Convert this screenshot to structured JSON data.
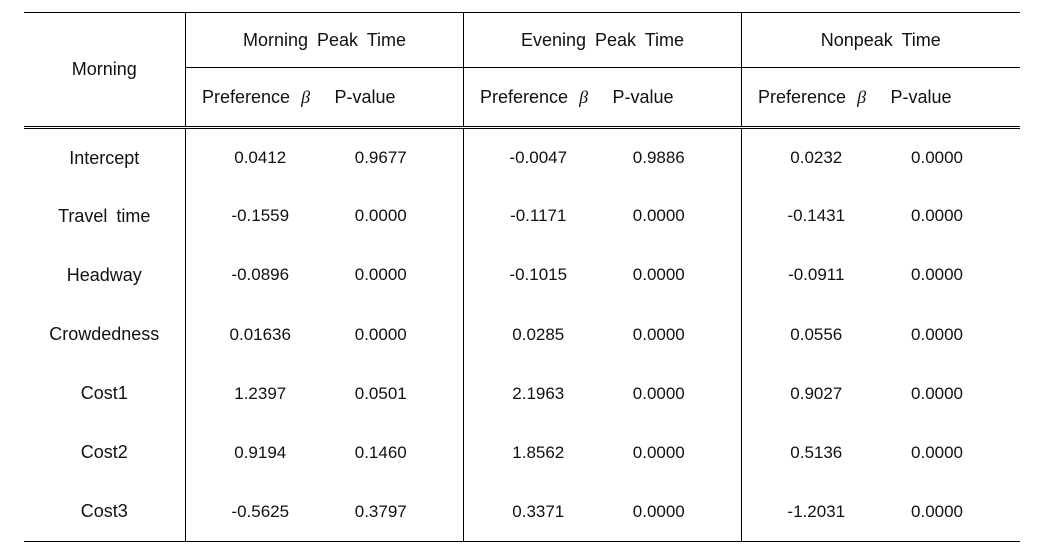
{
  "table": {
    "corner_label": "Morning",
    "groups": [
      {
        "title": "Morning Peak Time",
        "sub": [
          "Preference",
          "P-value"
        ]
      },
      {
        "title": "Evening Peak Time",
        "sub": [
          "Preference",
          "P-value"
        ]
      },
      {
        "title": "Nonpeak Time",
        "sub": [
          "Preference",
          "P-value"
        ]
      }
    ],
    "beta_glyph": "β",
    "rows": [
      {
        "label": "Intercept",
        "cells": [
          "0.0412",
          "0.9677",
          "-0.0047",
          "0.9886",
          "0.0232",
          "0.0000"
        ]
      },
      {
        "label": "Travel time",
        "cells": [
          "-0.1559",
          "0.0000",
          "-0.1171",
          "0.0000",
          "-0.1431",
          "0.0000"
        ]
      },
      {
        "label": "Headway",
        "cells": [
          "-0.0896",
          "0.0000",
          "-0.1015",
          "0.0000",
          "-0.0911",
          "0.0000"
        ]
      },
      {
        "label": "Crowdedness",
        "cells": [
          "0.01636",
          "0.0000",
          "0.0285",
          "0.0000",
          "0.0556",
          "0.0000"
        ]
      },
      {
        "label": "Cost1",
        "cells": [
          "1.2397",
          "0.0501",
          "2.1963",
          "0.0000",
          "0.9027",
          "0.0000"
        ]
      },
      {
        "label": "Cost2",
        "cells": [
          "0.9194",
          "0.1460",
          "1.8562",
          "0.0000",
          "0.5136",
          "0.0000"
        ]
      },
      {
        "label": "Cost3",
        "cells": [
          "-0.5625",
          "0.3797",
          "0.3371",
          "0.0000",
          "-1.2031",
          "0.0000"
        ]
      }
    ],
    "style": {
      "font_family": "Malgun Gothic",
      "header_fontsize": 18,
      "body_fontsize": 17,
      "border_color": "#000000",
      "background_color": "#ffffff",
      "text_color": "#111111",
      "double_rule": true
    }
  }
}
